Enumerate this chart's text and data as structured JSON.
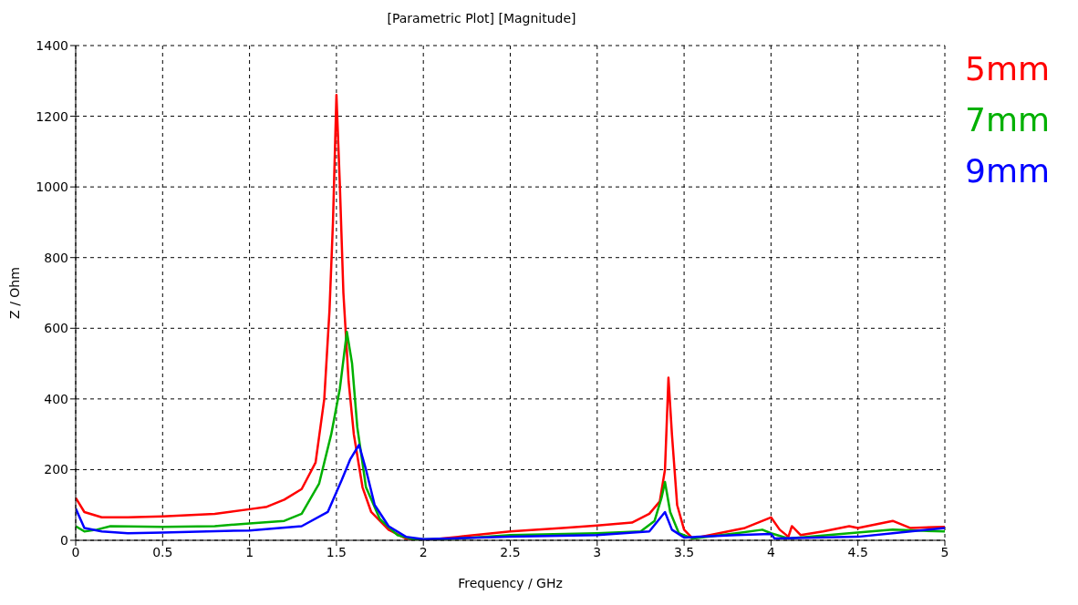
{
  "chart_data": {
    "type": "line",
    "title": "[Parametric Plot] [Magnitude]",
    "xlabel": "Frequency / GHz",
    "ylabel": "Z / Ohm",
    "xlim": [
      0,
      5
    ],
    "xticks": [
      0,
      0.5,
      1,
      1.5,
      2,
      2.5,
      3,
      3.5,
      4,
      4.5,
      5
    ],
    "ylim": [
      0,
      1400
    ],
    "yticks": [
      0,
      200,
      400,
      600,
      800,
      1000,
      1200,
      1400
    ],
    "grid": true,
    "legend": "top right",
    "line_style": "solid",
    "marker": "none",
    "series": [
      {
        "name": "5mm",
        "color": "#ff0000",
        "x": [
          0,
          0.05,
          0.15,
          0.3,
          0.5,
          0.8,
          1.0,
          1.1,
          1.2,
          1.3,
          1.38,
          1.43,
          1.46,
          1.48,
          1.5,
          1.52,
          1.54,
          1.57,
          1.6,
          1.65,
          1.7,
          1.8,
          1.9,
          2.0,
          2.2,
          2.5,
          2.8,
          3.0,
          3.2,
          3.3,
          3.36,
          3.39,
          3.41,
          3.43,
          3.46,
          3.5,
          3.55,
          3.7,
          3.85,
          4.0,
          4.05,
          4.1,
          4.12,
          4.17,
          4.3,
          4.45,
          4.5,
          4.7,
          4.8,
          5
        ],
        "values": [
          120,
          80,
          65,
          65,
          68,
          75,
          88,
          95,
          115,
          145,
          220,
          400,
          650,
          900,
          1260,
          1000,
          700,
          450,
          300,
          150,
          80,
          30,
          5,
          0,
          10,
          25,
          35,
          42,
          50,
          75,
          110,
          200,
          460,
          300,
          100,
          30,
          5,
          20,
          35,
          65,
          30,
          10,
          40,
          15,
          25,
          40,
          35,
          55,
          35,
          38
        ]
      },
      {
        "name": "7mm",
        "color": "#00b000",
        "x": [
          0,
          0.05,
          0.12,
          0.2,
          0.5,
          0.8,
          1.0,
          1.2,
          1.3,
          1.4,
          1.47,
          1.52,
          1.56,
          1.59,
          1.62,
          1.67,
          1.75,
          1.85,
          1.95,
          2.2,
          2.5,
          3.0,
          3.25,
          3.33,
          3.37,
          3.39,
          3.42,
          3.47,
          3.55,
          3.8,
          3.95,
          4.0,
          4.1,
          4.45,
          4.7,
          5
        ],
        "values": [
          40,
          25,
          30,
          40,
          38,
          40,
          48,
          55,
          75,
          160,
          300,
          430,
          590,
          500,
          320,
          150,
          60,
          15,
          2,
          5,
          15,
          20,
          25,
          55,
          120,
          165,
          80,
          20,
          5,
          20,
          30,
          20,
          5,
          20,
          30,
          25
        ]
      },
      {
        "name": "9mm",
        "color": "#0000ff",
        "x": [
          0,
          0.05,
          0.15,
          0.3,
          0.5,
          1.0,
          1.3,
          1.45,
          1.53,
          1.58,
          1.63,
          1.67,
          1.72,
          1.8,
          1.9,
          2.0,
          2.5,
          3.0,
          3.3,
          3.39,
          3.43,
          3.5,
          3.8,
          4.0,
          4.02,
          4.5,
          4.7,
          5
        ],
        "values": [
          90,
          35,
          25,
          20,
          22,
          28,
          40,
          80,
          170,
          230,
          270,
          200,
          100,
          40,
          10,
          3,
          10,
          15,
          25,
          80,
          30,
          8,
          15,
          18,
          5,
          10,
          20,
          35
        ]
      }
    ]
  }
}
